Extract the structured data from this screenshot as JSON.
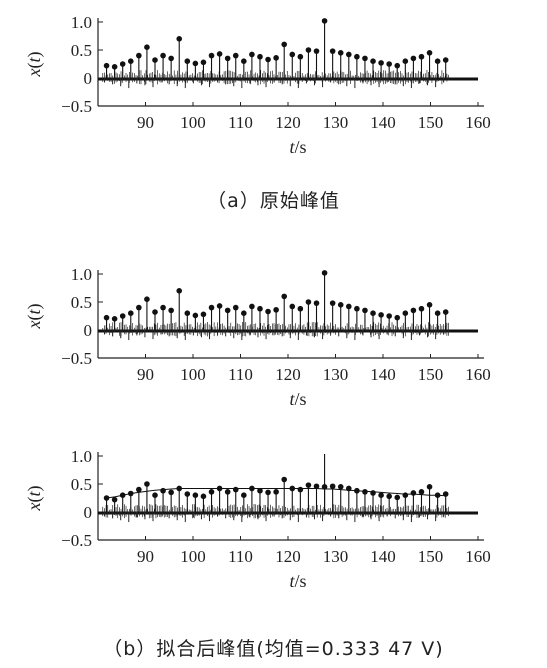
{
  "captions": {
    "a": "（a）原始峰值",
    "b": "（b）拟合后峰值(均值=0.333 47 V)"
  },
  "chart_data": [
    {
      "type": "scatter",
      "title": "",
      "xlabel_italic": "t",
      "xlabel_unit": "/s",
      "ylabel_italic": "t",
      "xlim": [
        80,
        160
      ],
      "ylim": [
        -0.5,
        1.0
      ],
      "xticks": [
        90,
        100,
        110,
        120,
        130,
        140,
        150,
        160
      ],
      "yticks": [
        1.0,
        0.5,
        0,
        -0.5
      ],
      "ytick_labels": [
        "1.0",
        "0.5",
        "0",
        "−0.5"
      ],
      "grid": false,
      "x": [
        81.8,
        83.5,
        85.2,
        86.9,
        88.6,
        90.3,
        92.0,
        93.7,
        95.4,
        97.1,
        98.8,
        100.5,
        102.2,
        103.9,
        105.6,
        107.3,
        109.0,
        110.7,
        112.4,
        114.1,
        115.8,
        117.5,
        119.2,
        120.9,
        122.6,
        124.3,
        126.0,
        127.7,
        129.4,
        131.1,
        132.8,
        134.5,
        136.2,
        137.9,
        139.6,
        141.3,
        143.0,
        144.7,
        146.4,
        148.1,
        149.8,
        151.5,
        153.2
      ],
      "y": [
        0.22,
        0.2,
        0.25,
        0.3,
        0.4,
        0.55,
        0.32,
        0.4,
        0.35,
        0.7,
        0.3,
        0.26,
        0.28,
        0.4,
        0.43,
        0.35,
        0.4,
        0.3,
        0.42,
        0.38,
        0.33,
        0.36,
        0.6,
        0.42,
        0.38,
        0.5,
        0.48,
        1.02,
        0.48,
        0.45,
        0.42,
        0.38,
        0.35,
        0.3,
        0.27,
        0.25,
        0.22,
        0.3,
        0.35,
        0.38,
        0.45,
        0.3,
        0.32
      ]
    },
    {
      "type": "scatter",
      "title": "",
      "xlabel_italic": "t",
      "xlabel_unit": "/s",
      "ylabel_italic": "t",
      "xlim": [
        80,
        160
      ],
      "ylim": [
        -0.5,
        1.0
      ],
      "xticks": [
        90,
        100,
        110,
        120,
        130,
        140,
        150,
        160
      ],
      "yticks": [
        1.0,
        0.5,
        0,
        -0.5
      ],
      "ytick_labels": [
        "1.0",
        "0.5",
        "0",
        "−0.5"
      ],
      "grid": false,
      "x": [
        81.8,
        83.5,
        85.2,
        86.9,
        88.6,
        90.3,
        92.0,
        93.7,
        95.4,
        97.1,
        98.8,
        100.5,
        102.2,
        103.9,
        105.6,
        107.3,
        109.0,
        110.7,
        112.4,
        114.1,
        115.8,
        117.5,
        119.2,
        120.9,
        122.6,
        124.3,
        126.0,
        127.7,
        129.4,
        131.1,
        132.8,
        134.5,
        136.2,
        137.9,
        139.6,
        141.3,
        143.0,
        144.7,
        146.4,
        148.1,
        149.8,
        151.5,
        153.2
      ],
      "y": [
        0.22,
        0.2,
        0.25,
        0.3,
        0.4,
        0.55,
        0.32,
        0.4,
        0.35,
        0.7,
        0.3,
        0.26,
        0.28,
        0.4,
        0.43,
        0.35,
        0.4,
        0.3,
        0.42,
        0.38,
        0.33,
        0.36,
        0.6,
        0.42,
        0.38,
        0.5,
        0.48,
        1.02,
        0.48,
        0.45,
        0.42,
        0.38,
        0.35,
        0.3,
        0.27,
        0.25,
        0.22,
        0.3,
        0.35,
        0.38,
        0.45,
        0.3,
        0.32
      ]
    },
    {
      "type": "scatter",
      "title": "",
      "xlabel_italic": "t",
      "xlabel_unit": "/s",
      "ylabel_italic": "t",
      "xlim": [
        80,
        160
      ],
      "ylim": [
        -0.5,
        1.0
      ],
      "xticks": [
        90,
        100,
        110,
        120,
        130,
        140,
        150,
        160
      ],
      "yticks": [
        1.0,
        0.5,
        0,
        -0.5
      ],
      "ytick_labels": [
        "1.0",
        "0.5",
        "0",
        "−0.5"
      ],
      "grid": false,
      "x": [
        81.8,
        83.5,
        85.2,
        86.9,
        88.6,
        90.3,
        92.0,
        93.7,
        95.4,
        97.1,
        98.8,
        100.5,
        102.2,
        103.9,
        105.6,
        107.3,
        109.0,
        110.7,
        112.4,
        114.1,
        115.8,
        117.5,
        119.2,
        120.9,
        122.6,
        124.3,
        126.0,
        127.7,
        129.4,
        131.1,
        132.8,
        134.5,
        136.2,
        137.9,
        139.6,
        141.3,
        143.0,
        144.7,
        146.4,
        148.1,
        149.8,
        151.5,
        153.2
      ],
      "y": [
        0.25,
        0.22,
        0.3,
        0.33,
        0.4,
        0.5,
        0.3,
        0.38,
        0.35,
        0.42,
        0.32,
        0.3,
        0.28,
        0.36,
        0.42,
        0.36,
        0.4,
        0.3,
        0.42,
        0.38,
        0.35,
        0.36,
        0.58,
        0.42,
        0.4,
        0.48,
        0.46,
        0.45,
        0.46,
        0.45,
        0.42,
        0.38,
        0.36,
        0.34,
        0.3,
        0.28,
        0.26,
        0.3,
        0.34,
        0.36,
        0.45,
        0.3,
        0.32
      ],
      "fit_curve_y": [
        0.25,
        0.27,
        0.3,
        0.33,
        0.35,
        0.37,
        0.39,
        0.4,
        0.41,
        0.42,
        0.42,
        0.42,
        0.42,
        0.42,
        0.42,
        0.42,
        0.42,
        0.42,
        0.42,
        0.42,
        0.42,
        0.42,
        0.42,
        0.42,
        0.42,
        0.42,
        0.42,
        0.41,
        0.41,
        0.4,
        0.39,
        0.38,
        0.37,
        0.36,
        0.35,
        0.34,
        0.33,
        0.32,
        0.32,
        0.31,
        0.3,
        0.3,
        0.29
      ]
    }
  ]
}
